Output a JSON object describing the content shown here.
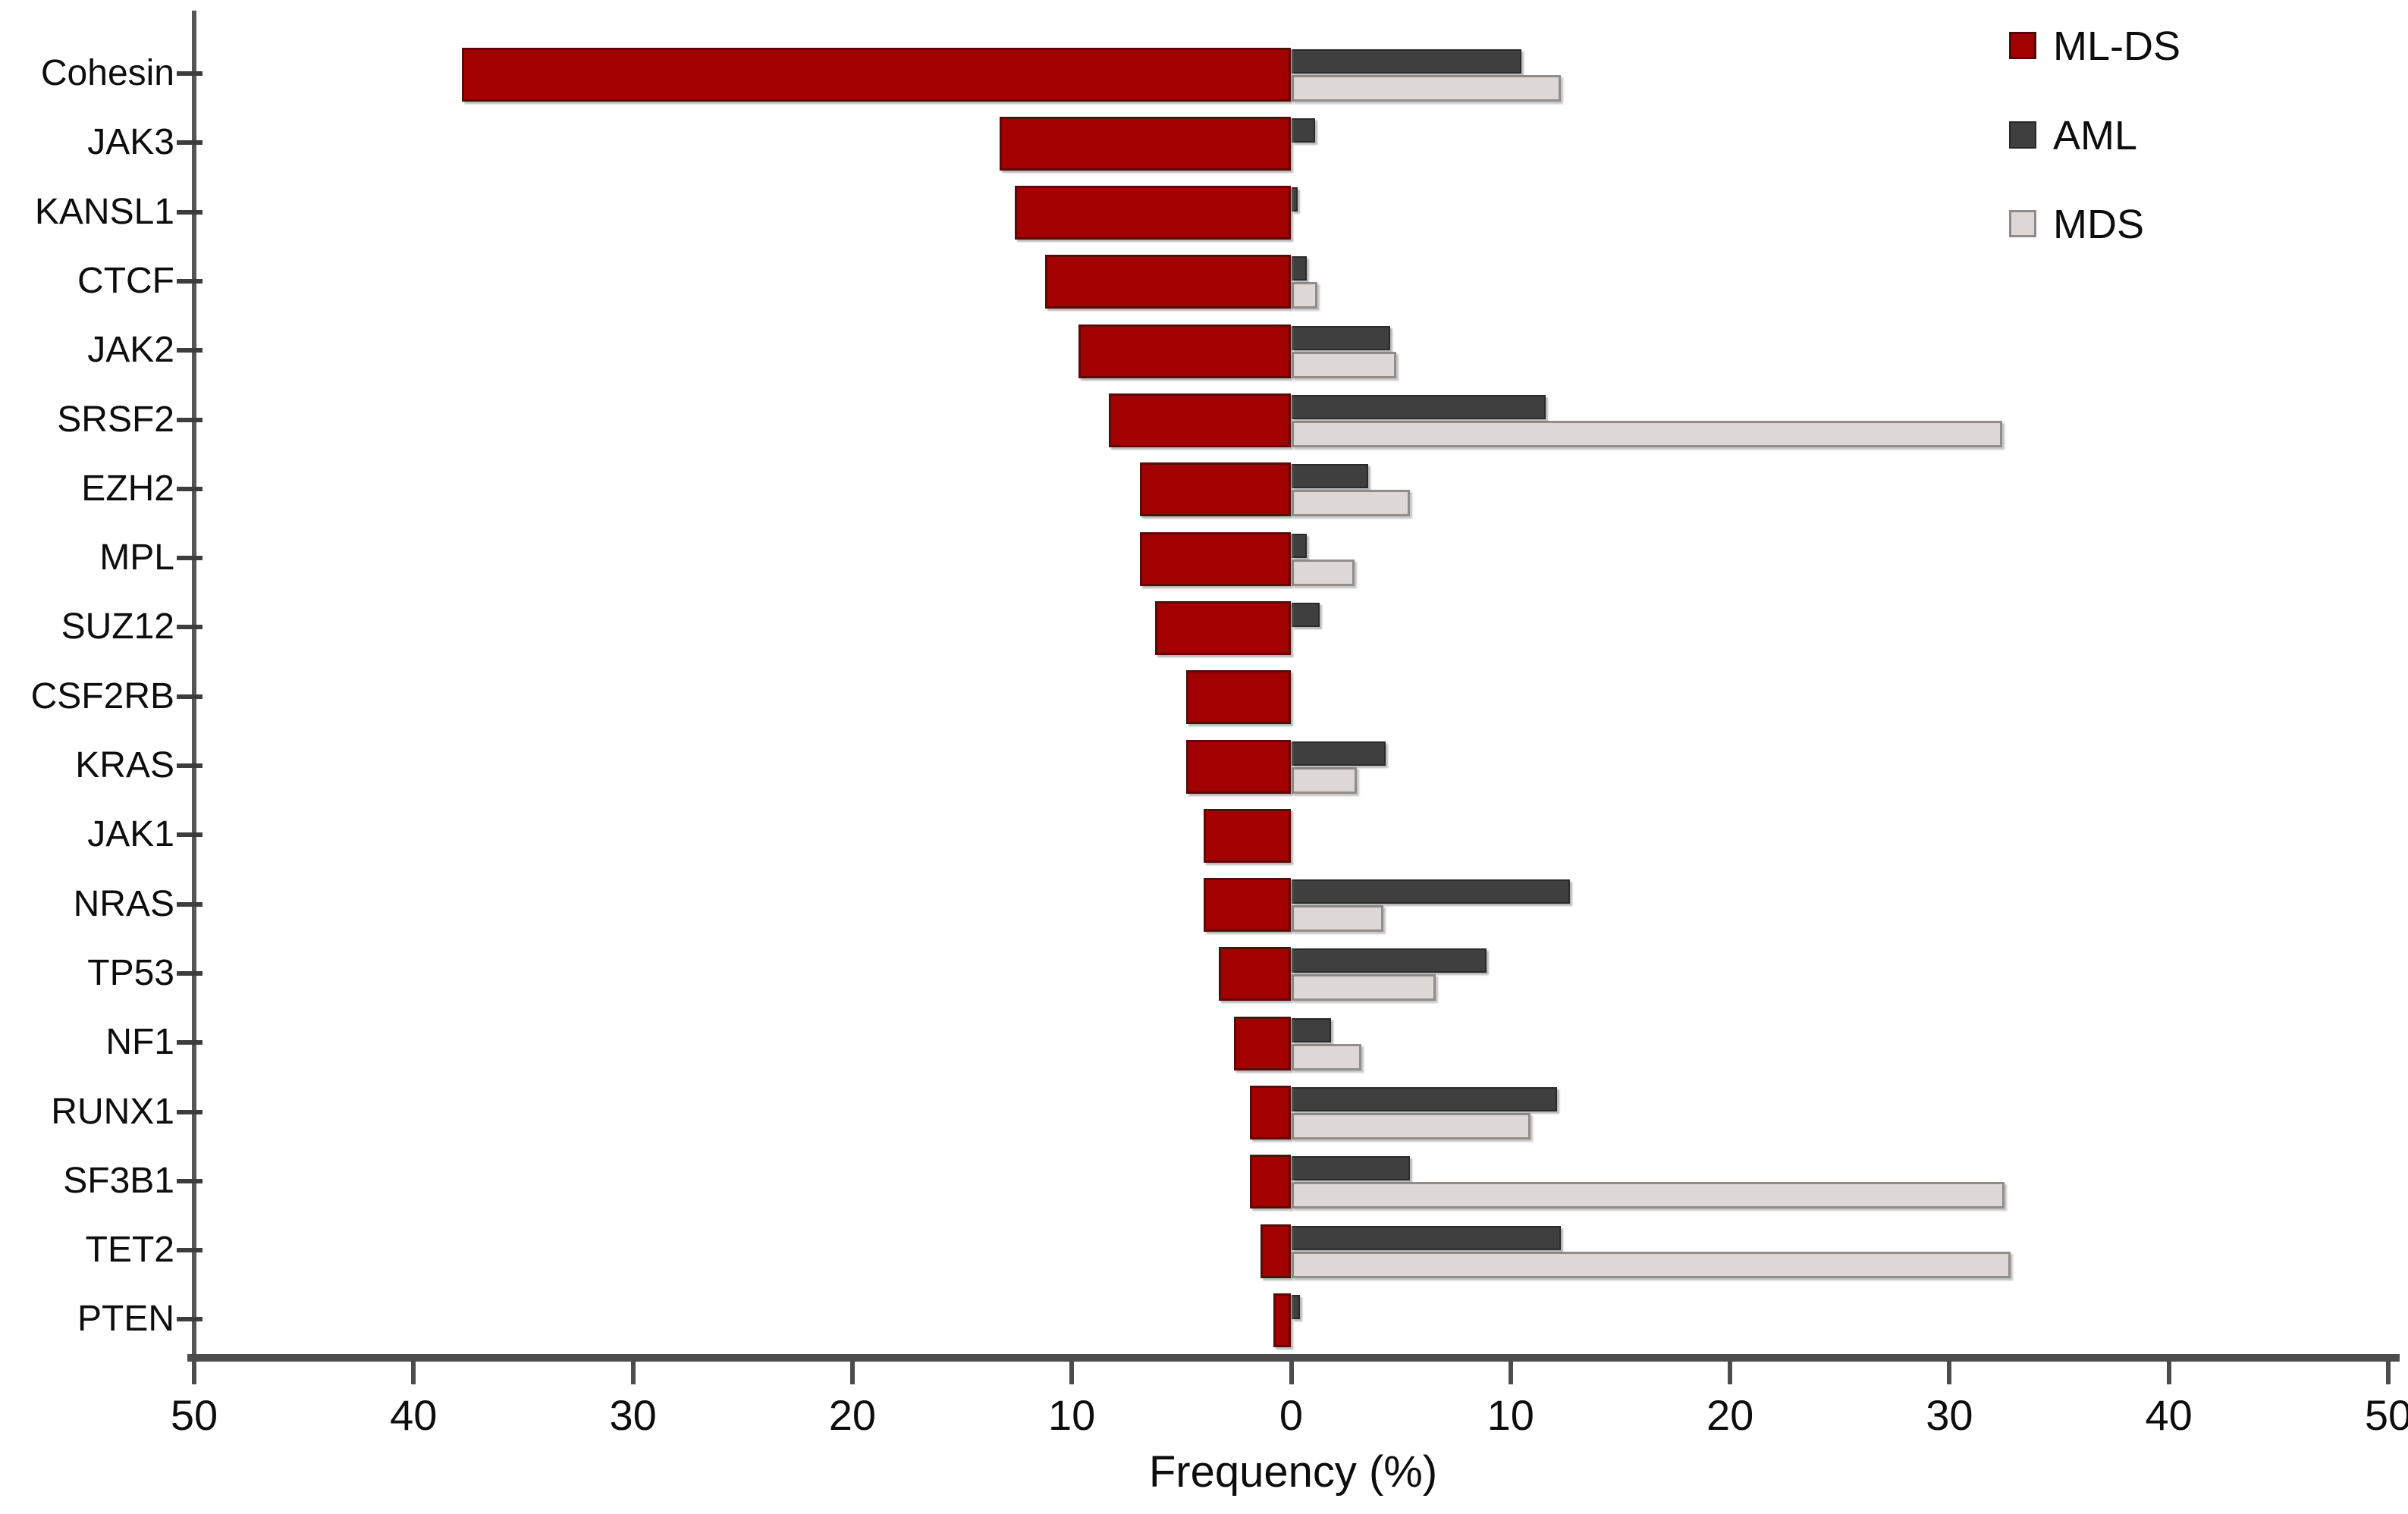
{
  "figure": {
    "xlabel": "Frequency (%)",
    "x_ticks": [
      "50",
      "40",
      "30",
      "20",
      "10",
      "0",
      "10",
      "20",
      "30",
      "40",
      "50"
    ],
    "legend": [
      {
        "key": "mlds",
        "label": "ML-DS",
        "color": "#a30101"
      },
      {
        "key": "aml",
        "label": "AML",
        "color": "#3f3f3f"
      },
      {
        "key": "mds",
        "label": "MDS",
        "color": "#ddd8d6"
      }
    ]
  },
  "chart_data": {
    "type": "bar",
    "orientation": "horizontal-diverging",
    "title": "",
    "xlabel": "Frequency (%)",
    "ylabel": "",
    "x_axis": {
      "left_range": [
        50,
        0
      ],
      "right_range": [
        0,
        50
      ],
      "tick_step": 10,
      "units": "%"
    },
    "grid": false,
    "legend_position": "top-right",
    "categories": [
      "Cohesin",
      "JAK3",
      "KANSL1",
      "CTCF",
      "JAK2",
      "SRSF2",
      "EZH2",
      "MPL",
      "SUZ12",
      "CSF2RB",
      "KRAS",
      "JAK1",
      "NRAS",
      "TP53",
      "NF1",
      "RUNX1",
      "SF3B1",
      "TET2",
      "PTEN"
    ],
    "series": [
      {
        "name": "ML-DS",
        "key": "mlds",
        "side": "left",
        "color": "#a30101",
        "values": [
          37.8,
          13.3,
          12.6,
          11.2,
          9.7,
          8.3,
          6.9,
          6.9,
          6.2,
          4.8,
          4.8,
          4.0,
          4.0,
          3.3,
          2.6,
          1.9,
          1.9,
          1.4,
          0.8
        ]
      },
      {
        "name": "AML",
        "key": "aml",
        "side": "right",
        "color": "#3f3f3f",
        "values": [
          10.5,
          1.1,
          0.3,
          0.7,
          4.5,
          11.6,
          3.5,
          0.7,
          1.3,
          0,
          4.3,
          0,
          12.7,
          8.9,
          1.8,
          12.1,
          5.4,
          12.3,
          0.4
        ]
      },
      {
        "name": "MDS",
        "key": "mds",
        "side": "right",
        "color": "#ddd8d6",
        "values": [
          12.3,
          0,
          0,
          1.2,
          4.8,
          32.4,
          5.4,
          2.9,
          0,
          0,
          3.0,
          0,
          4.2,
          6.6,
          3.2,
          10.9,
          32.5,
          32.8,
          0
        ]
      }
    ]
  }
}
